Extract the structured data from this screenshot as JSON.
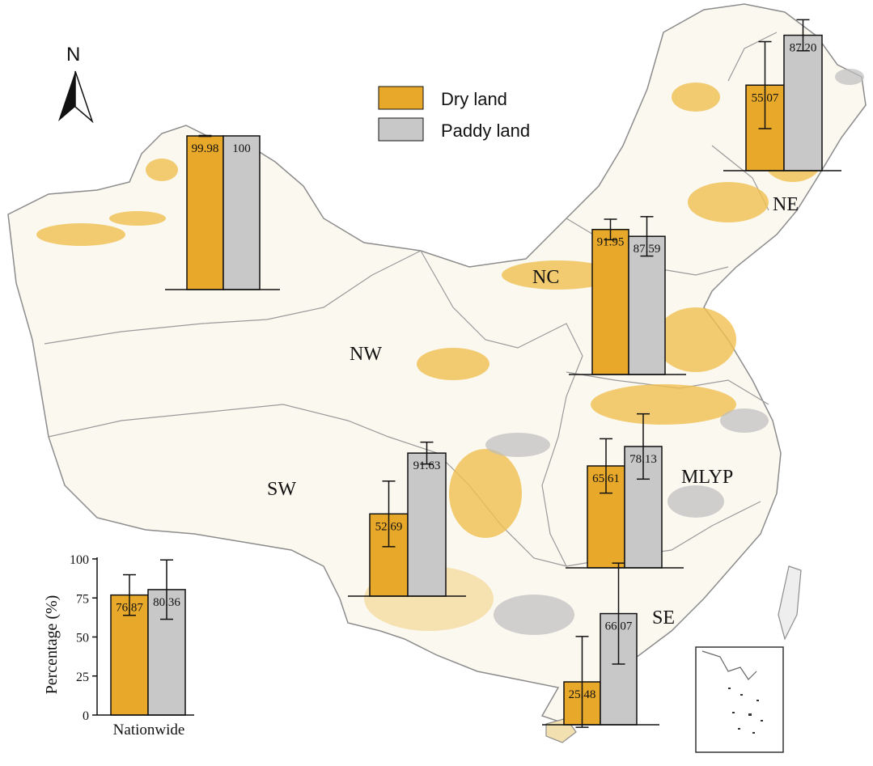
{
  "colors": {
    "dry_land": "#E8A92B",
    "paddy_land": "#C8C8C8",
    "map_dry": "#F0C050",
    "map_boundary": "#8C8C8C"
  },
  "map": {
    "north_label": "N"
  },
  "legend": {
    "items": [
      {
        "label": "Dry land",
        "color": "#E8A92B"
      },
      {
        "label": "Paddy land",
        "color": "#C8C8C8"
      }
    ]
  },
  "chart_data": [
    {
      "type": "bar",
      "region": "NW",
      "categories": [
        "Dry land",
        "Paddy land"
      ],
      "values": [
        99.98,
        100
      ],
      "error": [
        0.3,
        0
      ],
      "value_labels": [
        "99.98",
        "100"
      ]
    },
    {
      "type": "bar",
      "region": "NE",
      "categories": [
        "Dry land",
        "Paddy land"
      ],
      "values": [
        55.07,
        87.2
      ],
      "error": [
        28,
        10
      ],
      "value_labels": [
        "55.07",
        "87.20"
      ]
    },
    {
      "type": "bar",
      "region": "NC",
      "categories": [
        "Dry land",
        "Paddy land"
      ],
      "values": [
        91.95,
        87.59
      ],
      "error": [
        6.5,
        12.5
      ],
      "value_labels": [
        "91.95",
        "87.59"
      ]
    },
    {
      "type": "bar",
      "region": "SW",
      "categories": [
        "Dry land",
        "Paddy land"
      ],
      "values": [
        52.69,
        91.63
      ],
      "error": [
        21,
        7
      ],
      "value_labels": [
        "52.69",
        "91.63"
      ]
    },
    {
      "type": "bar",
      "region": "MLYP",
      "categories": [
        "Dry land",
        "Paddy land"
      ],
      "values": [
        65.61,
        78.13
      ],
      "error": [
        17.5,
        21
      ],
      "value_labels": [
        "65.61",
        "78.13"
      ]
    },
    {
      "type": "bar",
      "region": "SE",
      "categories": [
        "Dry land",
        "Paddy land"
      ],
      "values": [
        25.48,
        66.07
      ],
      "error": [
        27,
        30
      ],
      "value_labels": [
        "25.48",
        "66.07"
      ]
    },
    {
      "type": "bar",
      "region": "Nationwide",
      "categories": [
        "Dry land",
        "Paddy land"
      ],
      "values": [
        76.87,
        80.36
      ],
      "error": [
        13,
        19
      ],
      "value_labels": [
        "76.87",
        "80.36"
      ],
      "ylabel": "Percentage (%)",
      "xlabel": "Nationwide",
      "ylim": [
        0,
        100
      ],
      "yticks": [
        0,
        25,
        50,
        75,
        100
      ]
    }
  ]
}
